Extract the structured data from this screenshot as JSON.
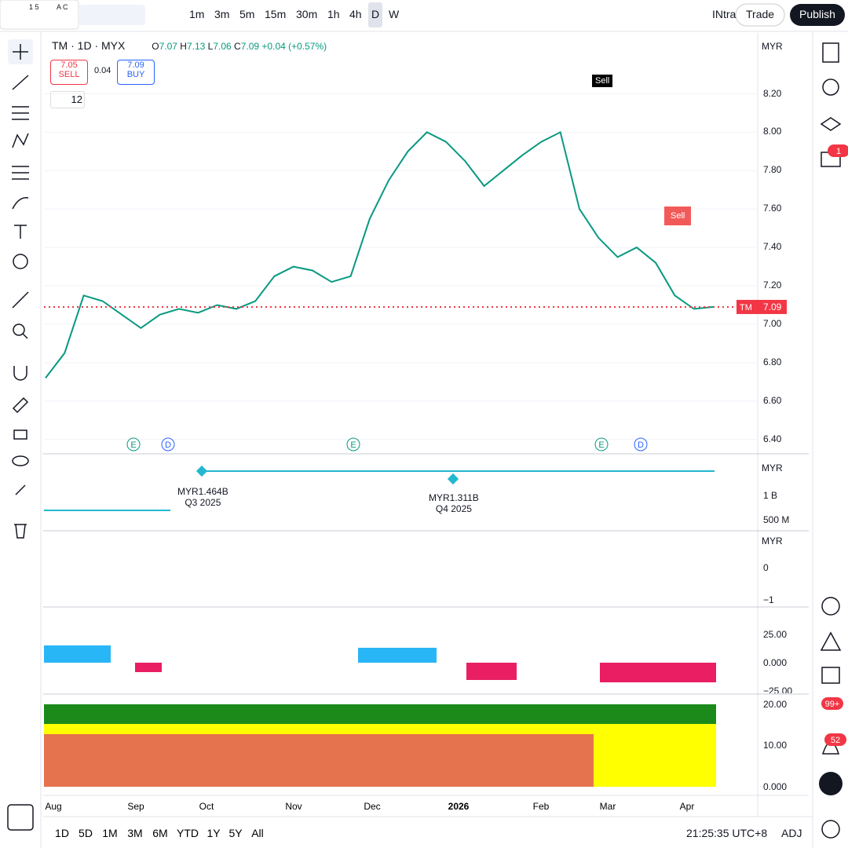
{
  "toolbar": {
    "logo_top": "1 5",
    "logo_bottom": "A C",
    "intervals": [
      "1m",
      "3m",
      "5m",
      "15m",
      "30m",
      "1h",
      "4h",
      "D",
      "W"
    ],
    "indicator_name": "INtra",
    "trade": "Trade",
    "publish": "Publish"
  },
  "legend": {
    "symbol": "TM · 1D · MYX",
    "open_label": "O",
    "open": "7.07",
    "high_label": "H",
    "high": "7.13",
    "low_label": "L",
    "low": "7.06",
    "close_label": "C",
    "close": "7.09",
    "change": "+0.04 (+0.57%)",
    "sell_price": "7.05",
    "sell": "SELL",
    "spread": "0.04",
    "buy_price": "7.09",
    "buy": "BUY",
    "count": "12"
  },
  "price": {
    "currency": "MYR",
    "ylim": [
      6.325,
      8.517
    ],
    "yticks": [
      {
        "value": 8.2,
        "label": "8.20"
      },
      {
        "value": 8.0,
        "label": "8.00"
      },
      {
        "value": 7.8,
        "label": "7.80"
      },
      {
        "value": 7.6,
        "label": "7.60"
      },
      {
        "value": 7.4,
        "label": "7.40"
      },
      {
        "value": 7.2,
        "label": "7.20"
      },
      {
        "value": 7.0,
        "label": "7.00"
      },
      {
        "value": 6.8,
        "label": "6.80"
      },
      {
        "value": 6.6,
        "label": "6.60"
      },
      {
        "value": 6.4,
        "label": "6.40"
      }
    ],
    "closes": [
      6.72,
      6.85,
      7.15,
      7.12,
      7.05,
      6.98,
      7.05,
      7.08,
      7.06,
      7.1,
      7.08,
      7.12,
      7.25,
      7.3,
      7.28,
      7.22,
      7.25,
      7.55,
      7.75,
      7.9,
      8.0,
      7.95,
      7.85,
      7.72,
      7.8,
      7.88,
      7.95,
      8.0,
      7.6,
      7.45,
      7.35,
      7.4,
      7.32,
      7.15,
      7.08,
      7.09
    ],
    "last": {
      "symbol": "TM",
      "value": 7.09
    },
    "signals": [
      "Sell",
      "Sell"
    ],
    "events": [
      "E",
      "D",
      "E",
      "E",
      "D"
    ]
  },
  "earnings": {
    "currency": "MYR",
    "points": [
      {
        "value": "MYR1.464B",
        "period": "Q3 2025"
      },
      {
        "value": "MYR1.311B",
        "period": "Q4 2025"
      }
    ],
    "ticks": [
      "1 B",
      "500 M"
    ]
  },
  "panel3": {
    "currency": "MYR",
    "ticks": [
      "0",
      "−1"
    ]
  },
  "panel4": {
    "ticks": [
      "25.00",
      "0.000",
      "−25.00"
    ]
  },
  "panel5": {
    "ticks": [
      "20.00",
      "10.00",
      "0.000"
    ]
  },
  "time_axis": [
    "Aug",
    "Sep",
    "Oct",
    "Nov",
    "Dec",
    "2026",
    "Feb",
    "Mar",
    "Apr"
  ],
  "bottom": {
    "ranges": [
      "1D",
      "5D",
      "1M",
      "3M",
      "6M",
      "YTD",
      "1Y",
      "5Y",
      "All"
    ],
    "clock": "21:25:35 UTC+8",
    "adj": "ADJ"
  },
  "sidebar": {
    "badges": [
      "1",
      "99+",
      "52"
    ]
  }
}
